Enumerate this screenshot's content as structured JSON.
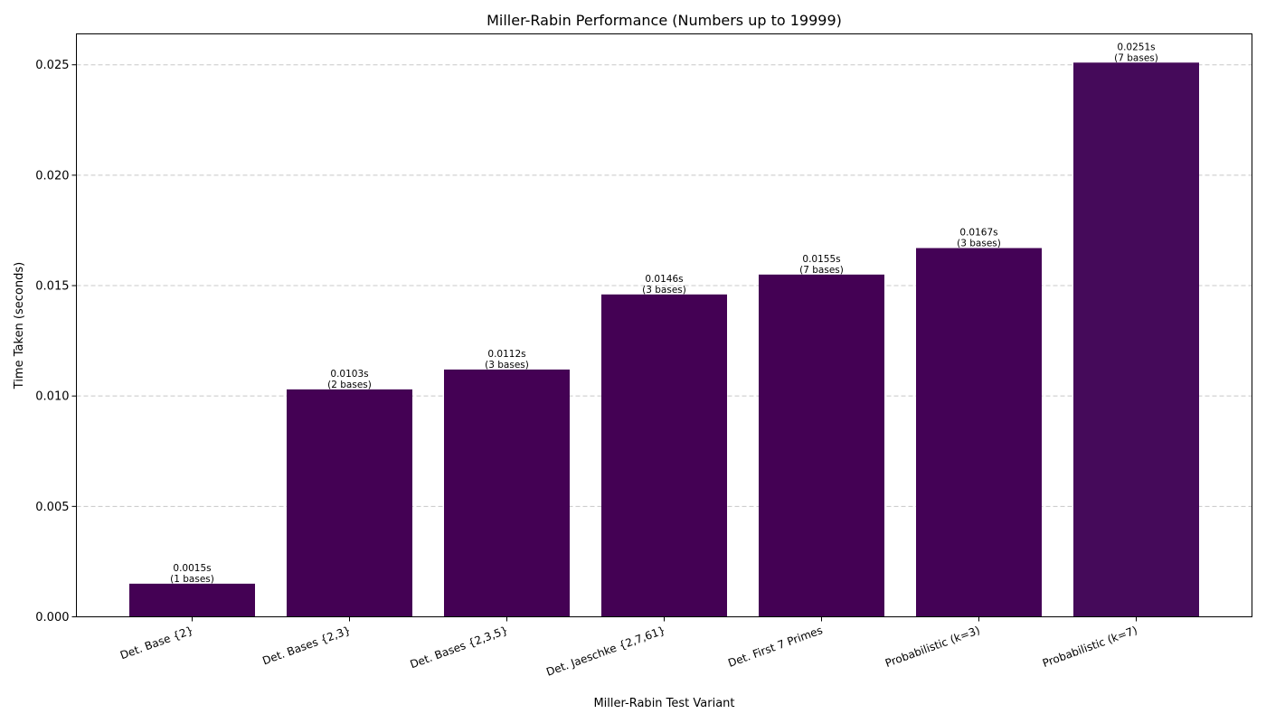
{
  "chart_data": {
    "type": "bar",
    "title": "Miller-Rabin Performance (Numbers up to 19999)",
    "xlabel": "Miller-Rabin Test Variant",
    "ylabel": "Time Taken (seconds)",
    "ylim": [
      0,
      0.0264
    ],
    "yticks": [
      0.0,
      0.005,
      0.01,
      0.015,
      0.02,
      0.025
    ],
    "ytick_labels": [
      "0.000",
      "0.005",
      "0.010",
      "0.015",
      "0.020",
      "0.025"
    ],
    "grid": "y-dashed",
    "bar_colors": [
      "#440154",
      "#440154",
      "#440154",
      "#440154",
      "#440154",
      "#440256",
      "#450a5a"
    ],
    "categories": [
      "Det. Base {2}",
      "Det. Bases {2,3}",
      "Det. Bases {2,3,5}",
      "Det. Jaeschke {2,7,61}",
      "Det. First 7 Primes",
      "Probabilistic (k=3)",
      "Probabilistic (k=7)"
    ],
    "values": [
      0.0015,
      0.0103,
      0.0112,
      0.0146,
      0.0155,
      0.0167,
      0.0251
    ],
    "value_labels": [
      "0.0015s",
      "0.0103s",
      "0.0112s",
      "0.0146s",
      "0.0155s",
      "0.0167s",
      "0.0251s"
    ],
    "bases_labels": [
      "(1 bases)",
      "(2 bases)",
      "(3 bases)",
      "(3 bases)",
      "(7 bases)",
      "(3 bases)",
      "(7 bases)"
    ]
  }
}
